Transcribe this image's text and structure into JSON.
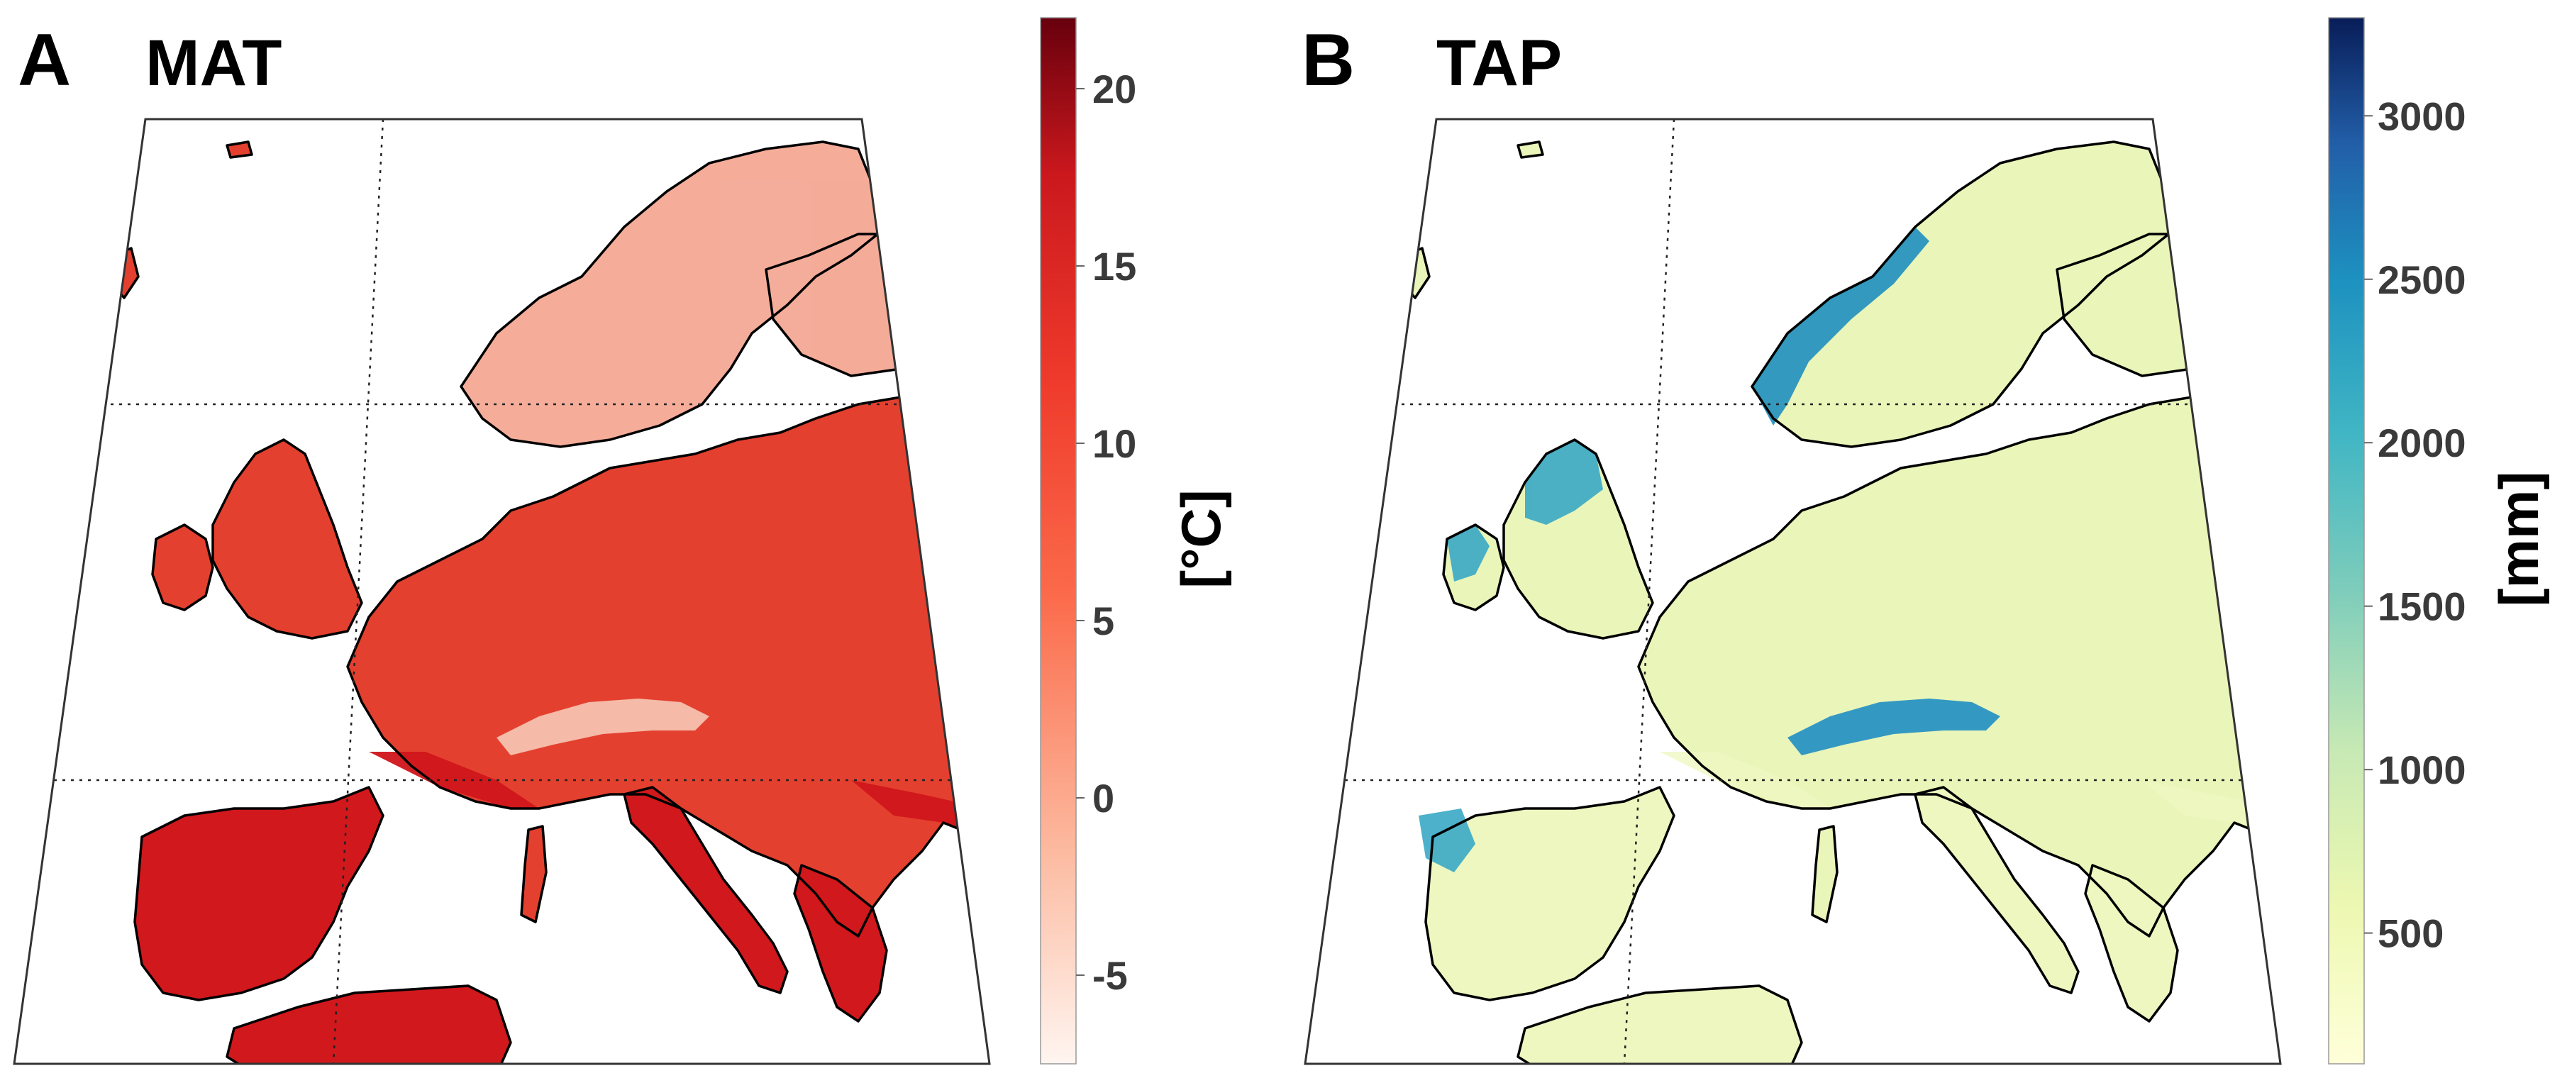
{
  "panels": [
    {
      "letter": "A",
      "title": "MAT",
      "colorbar": {
        "unit": "[°C]",
        "ticks": [
          "20",
          "15",
          "10",
          "5",
          "0",
          "-5"
        ],
        "tick_values": [
          20,
          15,
          10,
          5,
          0,
          -5
        ],
        "range": [
          -7.5,
          22
        ],
        "colors": [
          "#fff5f0",
          "#fcbba1",
          "#fb6a4a",
          "#ef3b2c",
          "#cb181d",
          "#67000d"
        ]
      },
      "land_color": "#e2402f",
      "north_color": "#f6b9a4",
      "south_color": "#d0161b"
    },
    {
      "letter": "B",
      "title": "TAP",
      "colorbar": {
        "unit": "[mm]",
        "ticks": [
          "3000",
          "2500",
          "2000",
          "1500",
          "1000",
          "500"
        ],
        "tick_values": [
          3000,
          2500,
          2000,
          1500,
          1000,
          500
        ],
        "range": [
          100,
          3300
        ],
        "colors": [
          "#ffffd9",
          "#edf8b1",
          "#c7e9b4",
          "#7fcdbb",
          "#41b6c4",
          "#1d91c0",
          "#225ea8",
          "#081d58"
        ]
      },
      "land_color": "#eaf5b9",
      "wet_color": "#2a93c2"
    }
  ]
}
